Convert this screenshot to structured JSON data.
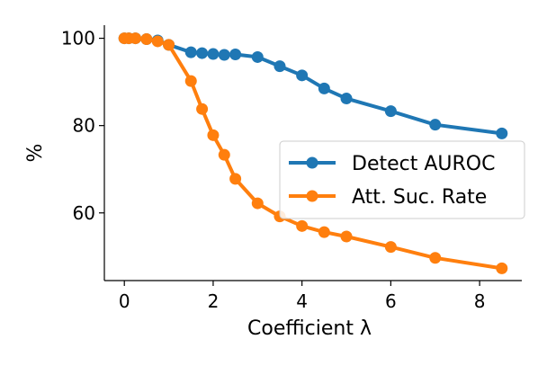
{
  "chart_data": {
    "type": "line",
    "xlabel": "Coefficient λ",
    "ylabel": "%",
    "xlim": [
      -0.45,
      8.95
    ],
    "ylim": [
      44.5,
      103
    ],
    "xticks": [
      0,
      2,
      4,
      6,
      8
    ],
    "yticks": [
      60,
      80,
      100
    ],
    "grid": false,
    "legend_position": "center-right",
    "series": [
      {
        "name": "Detect AUROC",
        "color": "#1f77b4",
        "x": [
          0,
          0.1,
          0.25,
          0.5,
          0.75,
          1,
          1.5,
          1.75,
          2,
          2.25,
          2.5,
          3,
          3.5,
          4,
          4.5,
          5,
          6,
          7,
          8.5
        ],
        "y": [
          100,
          100,
          100,
          99.8,
          99.5,
          98.5,
          96.8,
          96.6,
          96.4,
          96.2,
          96.3,
          95.7,
          93.6,
          91.5,
          88.5,
          86.2,
          83.3,
          80.2,
          78.2
        ]
      },
      {
        "name": "Att. Suc. Rate",
        "color": "#ff7f0e",
        "x": [
          0,
          0.1,
          0.25,
          0.5,
          0.75,
          1,
          1.5,
          1.75,
          2,
          2.25,
          2.5,
          3,
          3.5,
          4,
          4.5,
          5,
          6,
          7,
          8.5
        ],
        "y": [
          100,
          100,
          100,
          99.8,
          99.3,
          98.5,
          90.2,
          83.8,
          77.8,
          73.3,
          67.8,
          62.2,
          59.2,
          57.0,
          55.6,
          54.6,
          52.2,
          49.7,
          47.3
        ]
      }
    ]
  }
}
